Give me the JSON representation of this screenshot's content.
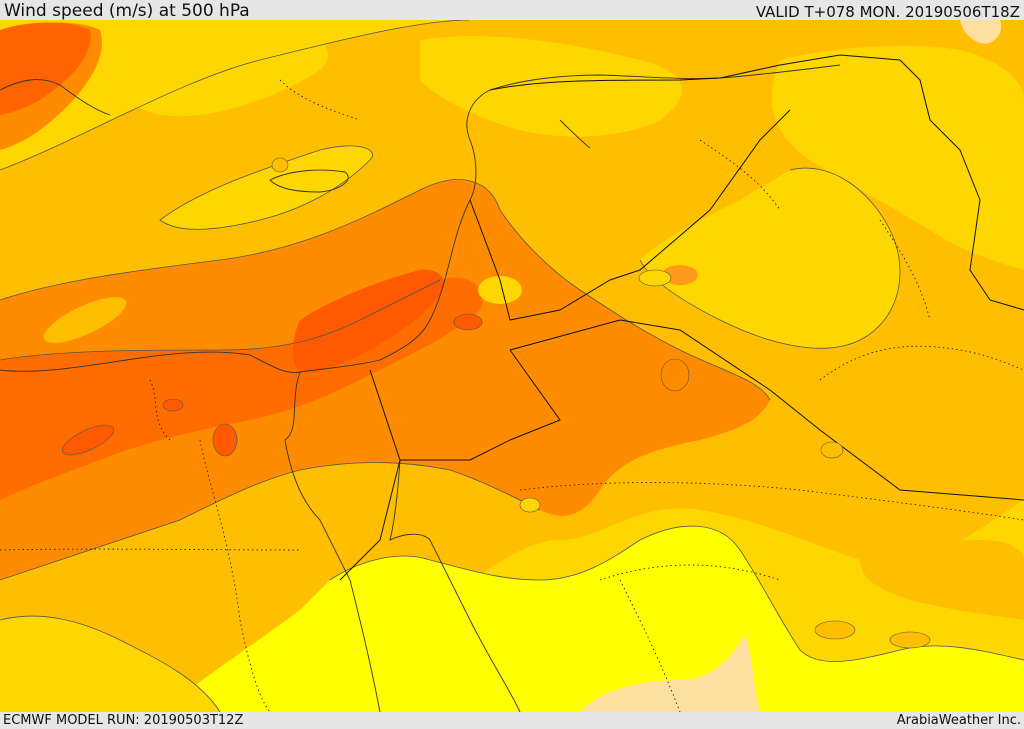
{
  "header": {
    "title": "Wind speed (m/s) at 500 hPa",
    "valid": "VALID T+078 MON. 20190506T18Z"
  },
  "footer": {
    "model_run": "ECMWF MODEL RUN: 20190503T12Z",
    "credit": "ArabiaWeather Inc."
  },
  "colors": {
    "lightest": "#ffff00",
    "light": "#ffd700",
    "medium": "#ffbf00",
    "strong": "#ff8c00",
    "stronger": "#ff6d00",
    "strongest": "#ff4500",
    "land_tan": "#fddfa0",
    "border": "#222222",
    "coast": "#333333"
  }
}
